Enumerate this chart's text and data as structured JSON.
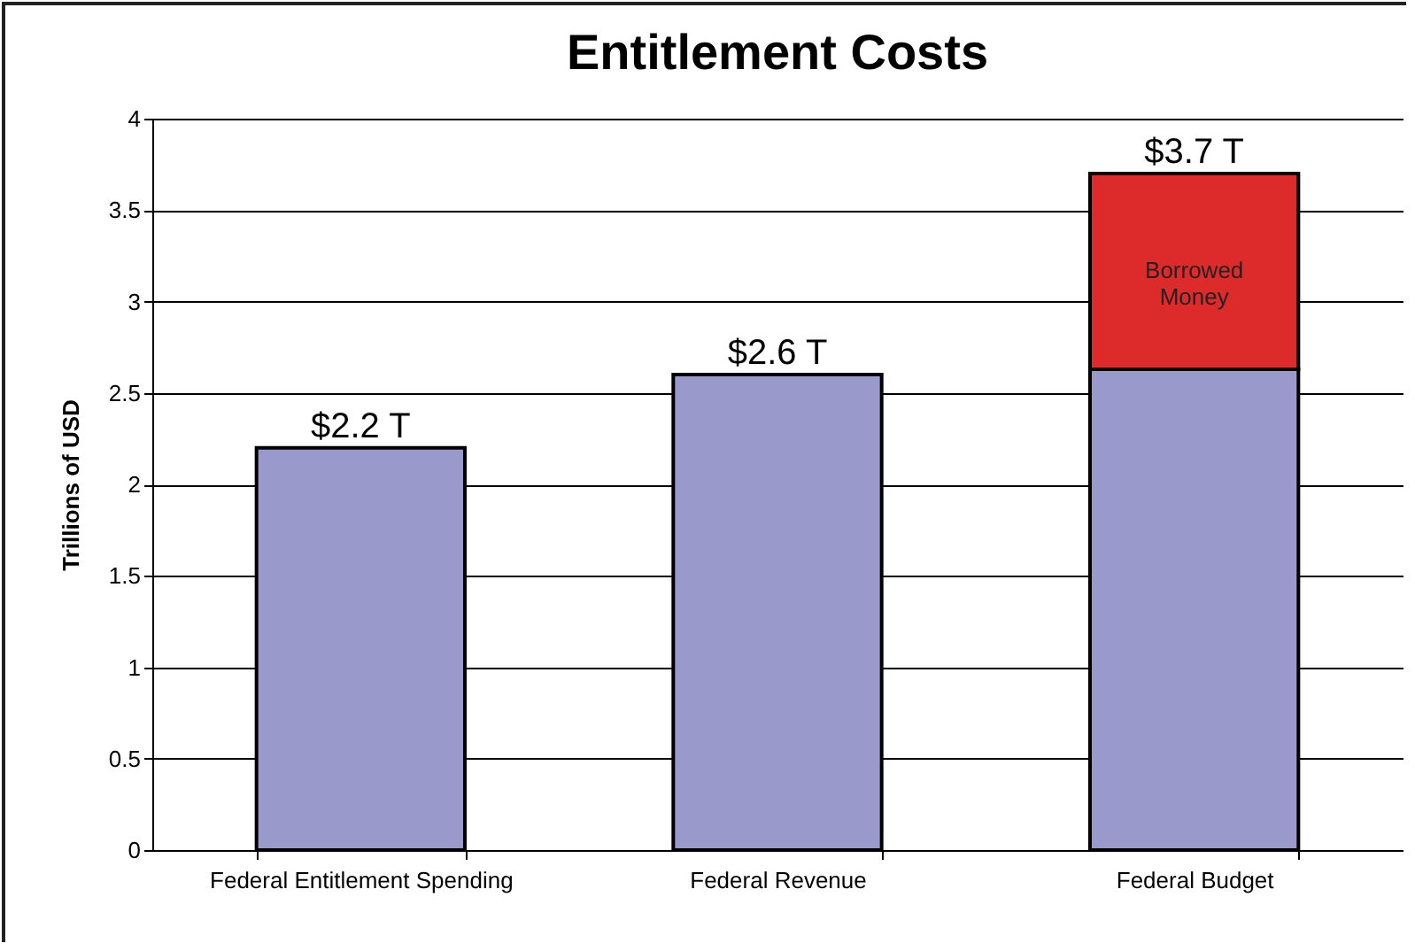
{
  "chart_data": {
    "type": "bar",
    "title": "Entitlement Costs",
    "ylabel": "Trillions of USD",
    "categories": [
      "Federal Entitlement Spending",
      "Federal Revenue",
      "Federal Budget"
    ],
    "series": [
      {
        "color": "#9999cc",
        "values": [
          2.2,
          2.6,
          2.63
        ]
      },
      {
        "name": "Borrowed Money",
        "color": "#dd2a2a",
        "values": [
          null,
          null,
          1.07
        ]
      }
    ],
    "stacked": true,
    "totals": [
      "$2.2 T",
      "$2.6 T",
      "$3.7 T"
    ],
    "ylim": [
      0,
      4
    ],
    "yticks": [
      0,
      0.5,
      1,
      1.5,
      2,
      2.5,
      3,
      3.5,
      4
    ],
    "grid": "y",
    "legend": false
  }
}
